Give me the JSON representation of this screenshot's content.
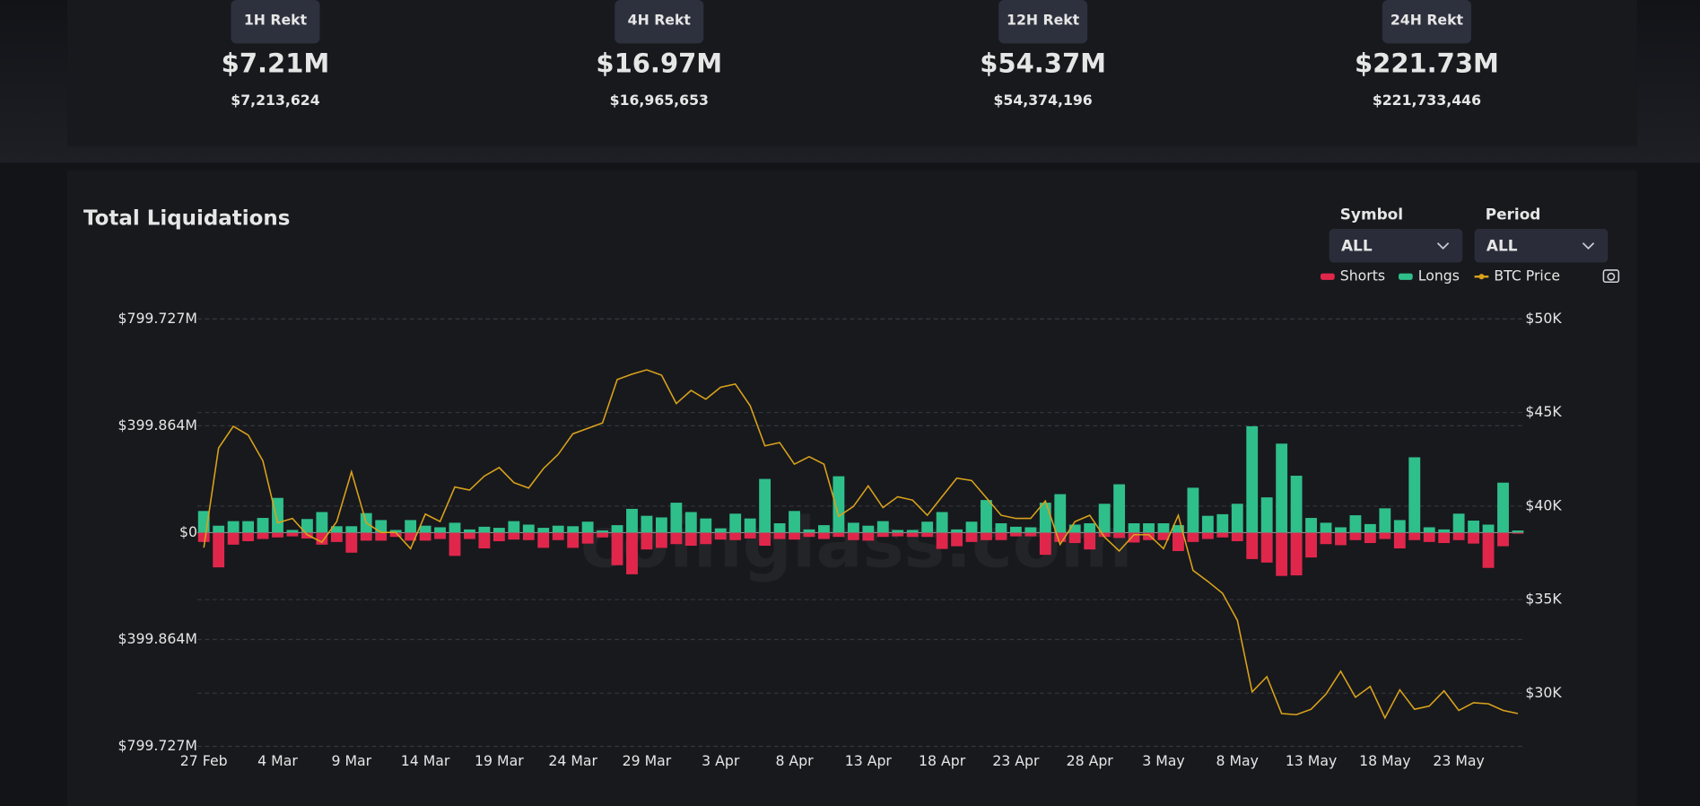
{
  "stats": [
    {
      "label": "1H Rekt",
      "short": "$7.21M",
      "full": "$7,213,624"
    },
    {
      "label": "4H Rekt",
      "short": "$16.97M",
      "full": "$16,965,653"
    },
    {
      "label": "12H Rekt",
      "short": "$54.37M",
      "full": "$54,374,196"
    },
    {
      "label": "24H Rekt",
      "short": "$221.73M",
      "full": "$221,733,446"
    }
  ],
  "chart_data": {
    "type": "bar",
    "title": "Total Liquidations",
    "controls": [
      {
        "label": "Symbol",
        "value": "ALL"
      },
      {
        "label": "Period",
        "value": "ALL"
      }
    ],
    "watermark": "coinglass.com",
    "categories": [
      "27 Feb",
      null,
      null,
      null,
      null,
      "4 Mar",
      null,
      null,
      null,
      null,
      "9 Mar",
      null,
      null,
      null,
      null,
      "14 Mar",
      null,
      null,
      null,
      null,
      "19 Mar",
      null,
      null,
      null,
      null,
      "24 Mar",
      null,
      null,
      null,
      null,
      "29 Mar",
      null,
      null,
      null,
      null,
      "3 Apr",
      null,
      null,
      null,
      null,
      "8 Apr",
      null,
      null,
      null,
      null,
      "13 Apr",
      null,
      null,
      null,
      null,
      "18 Apr",
      null,
      null,
      null,
      null,
      "23 Apr",
      null,
      null,
      null,
      null,
      "28 Apr",
      null,
      null,
      null,
      null,
      "3 May",
      null,
      null,
      null,
      null,
      "8 May",
      null,
      null,
      null,
      null,
      "13 May",
      null,
      null,
      null,
      null,
      "18 May",
      null,
      null,
      null,
      null,
      "23 May",
      null,
      null,
      null,
      null
    ],
    "series": [
      {
        "name": "Shorts",
        "color": "#e0274b",
        "values": [
          -35,
          -130,
          -45,
          -32,
          -24,
          -18,
          -14,
          -22,
          -45,
          -35,
          -75,
          -30,
          -30,
          -16,
          -30,
          -30,
          -24,
          -87,
          -24,
          -59,
          -32,
          -26,
          -28,
          -57,
          -28,
          -57,
          -41,
          -18,
          -122,
          -156,
          -63,
          -57,
          -43,
          -49,
          -43,
          -26,
          -28,
          -22,
          -49,
          -24,
          -26,
          -16,
          -24,
          -16,
          -28,
          -30,
          -16,
          -14,
          -16,
          -16,
          -61,
          -51,
          -35,
          -28,
          -28,
          -14,
          -14,
          -83,
          -35,
          -39,
          -63,
          -16,
          -20,
          -37,
          -28,
          -28,
          -69,
          -35,
          -24,
          -18,
          -32,
          -99,
          -112,
          -162,
          -160,
          -93,
          -43,
          -47,
          -28,
          -39,
          -24,
          -59,
          -28,
          -35,
          -39,
          -28,
          -41,
          -132,
          -51,
          -4
        ]
      },
      {
        "name": "Longs",
        "color": "#2fbf8b",
        "values": [
          81,
          26,
          43,
          43,
          55,
          130,
          10,
          51,
          77,
          24,
          24,
          73,
          47,
          10,
          47,
          26,
          20,
          37,
          12,
          22,
          18,
          43,
          30,
          18,
          26,
          24,
          41,
          8,
          28,
          89,
          63,
          57,
          112,
          77,
          53,
          16,
          71,
          53,
          201,
          35,
          81,
          12,
          28,
          211,
          37,
          26,
          43,
          10,
          10,
          41,
          77,
          12,
          41,
          122,
          35,
          22,
          20,
          112,
          144,
          30,
          35,
          108,
          181,
          35,
          35,
          35,
          28,
          168,
          63,
          69,
          108,
          398,
          132,
          333,
          213,
          55,
          37,
          20,
          65,
          32,
          91,
          47,
          282,
          20,
          12,
          71,
          45,
          30,
          187,
          8
        ]
      },
      {
        "name": "BTC Price",
        "color": "#d9a21b",
        "type": "line",
        "axis": "y2",
        "values": [
          37780,
          43100,
          44260,
          43800,
          42410,
          39100,
          39340,
          38470,
          38070,
          39170,
          41830,
          39100,
          38590,
          38590,
          37720,
          39570,
          39170,
          41020,
          40850,
          41600,
          42060,
          41250,
          40960,
          42000,
          42760,
          43860,
          44150,
          44440,
          46760,
          47050,
          47280,
          46990,
          45480,
          46180,
          45710,
          46350,
          46520,
          45360,
          43220,
          43390,
          42240,
          42640,
          42240,
          39450,
          39980,
          41080,
          39920,
          40500,
          40320,
          39510,
          40500,
          41490,
          41370,
          40440,
          39510,
          39340,
          39340,
          40270,
          37950,
          39170,
          39510,
          38350,
          37600,
          38470,
          38470,
          37720,
          39510,
          36560,
          35980,
          35340,
          33890,
          30070,
          30880,
          28910,
          28850,
          29140,
          29950,
          31170,
          29780,
          30360,
          28680,
          30180,
          29140,
          29310,
          30130,
          29080,
          29490,
          29430,
          29080,
          28910
        ]
      }
    ],
    "ylim": [
      -799.727,
      799.727
    ],
    "yticks": [
      {
        "value": 799.727,
        "label": "$799.727M"
      },
      {
        "value": 399.864,
        "label": "$399.864M"
      },
      {
        "value": 0,
        "label": "$0"
      },
      {
        "value": -399.864,
        "label": "$399.864M"
      },
      {
        "value": -799.727,
        "label": "$799.727M"
      }
    ],
    "y2lim": [
      27160,
      50000
    ],
    "y2ticks": [
      {
        "value": 50000,
        "label": "$50K"
      },
      {
        "value": 45000,
        "label": "$45K"
      },
      {
        "value": 40000,
        "label": "$40K"
      },
      {
        "value": 35000,
        "label": "$35K"
      },
      {
        "value": 30000,
        "label": "$30K"
      }
    ],
    "grid": true
  }
}
